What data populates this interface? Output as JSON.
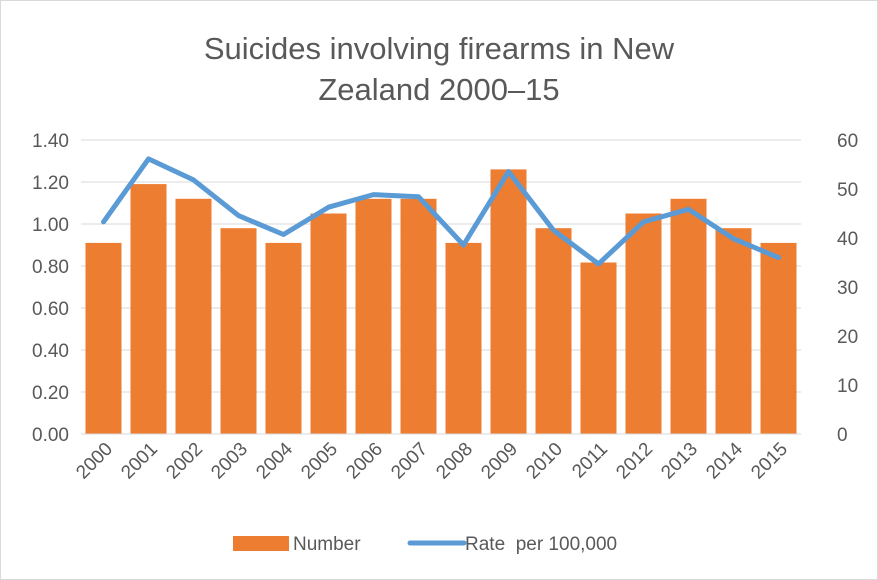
{
  "chart_data": {
    "type": "bar+line",
    "title_lines": [
      "Suicides involving firearms in New",
      "Zealand 2000–15"
    ],
    "categories": [
      "2000",
      "2001",
      "2002",
      "2003",
      "2004",
      "2005",
      "2006",
      "2007",
      "2008",
      "2009",
      "2010",
      "2011",
      "2012",
      "2013",
      "2014",
      "2015"
    ],
    "series": [
      {
        "name": "Number",
        "kind": "bar",
        "axis": "right",
        "color": "#ed7d31",
        "values": [
          39,
          51,
          48,
          42,
          39,
          45,
          48,
          48,
          39,
          54,
          42,
          35,
          45,
          48,
          42,
          39
        ]
      },
      {
        "name": "Rate  per 100,000",
        "kind": "line",
        "axis": "left",
        "color": "#5b9bd5",
        "values": [
          1.01,
          1.31,
          1.21,
          1.04,
          0.95,
          1.08,
          1.14,
          1.13,
          0.9,
          1.25,
          0.97,
          0.81,
          1.01,
          1.07,
          0.93,
          0.84
        ]
      }
    ],
    "y_left": {
      "min": 0,
      "max": 1.4,
      "ticks": [
        "0.00",
        "0.20",
        "0.40",
        "0.60",
        "0.80",
        "1.00",
        "1.20",
        "1.40"
      ]
    },
    "y_right": {
      "min": 0,
      "max": 60,
      "ticks": [
        "0",
        "10",
        "20",
        "30",
        "40",
        "50",
        "60"
      ]
    },
    "grid": true,
    "gridline_color": "#d9d9d9",
    "legend_position": "bottom"
  }
}
